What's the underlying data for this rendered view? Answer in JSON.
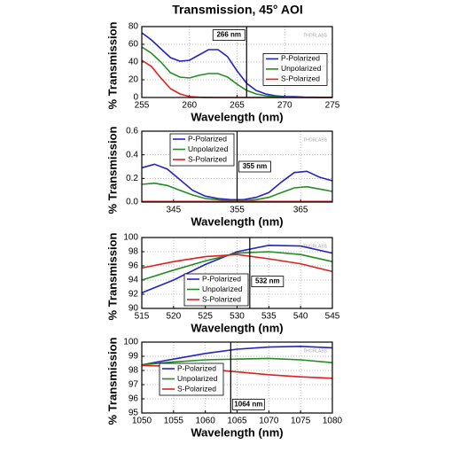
{
  "title": "Transmission, 45° AOI",
  "chart_data": [
    {
      "type": "line",
      "xlabel": "Wavelength (nm)",
      "ylabel": "% Transmission",
      "watermark": "THORLABS",
      "x": [
        255,
        256,
        257,
        258,
        259,
        260,
        261,
        262,
        263,
        264,
        265,
        266,
        267,
        268,
        269,
        270,
        271,
        272,
        273,
        274,
        275
      ],
      "series": [
        {
          "name": "P-Polarized",
          "color": "#2323c8",
          "values": [
            73,
            65,
            55,
            45,
            41,
            42,
            48,
            54,
            54,
            46,
            30,
            16,
            8,
            4,
            2,
            1,
            1,
            0.5,
            0.3,
            0.2,
            0.2
          ]
        },
        {
          "name": "Unpolarized",
          "color": "#238c23",
          "values": [
            57,
            50,
            40,
            28,
            23,
            22,
            25,
            27,
            27,
            23,
            15,
            8,
            4,
            2,
            1,
            0.5,
            0.3,
            0.2,
            0.1,
            0.1,
            0.1
          ]
        },
        {
          "name": "S-Polarized",
          "color": "#e02020",
          "values": [
            42,
            35,
            22,
            10,
            4,
            1,
            0.3,
            0.1,
            0,
            0,
            0,
            0,
            0,
            0,
            0,
            0,
            0,
            0,
            0,
            0,
            0
          ]
        }
      ],
      "xlim": [
        255,
        275
      ],
      "xticks": [
        255,
        260,
        265,
        270,
        275
      ],
      "ylim": [
        0,
        80
      ],
      "yticks": [
        0,
        20,
        40,
        60,
        80
      ],
      "grid": true,
      "legend": "right",
      "marker": {
        "value": 266,
        "label": "266 nm"
      }
    },
    {
      "type": "line",
      "xlabel": "Wavelength (nm)",
      "ylabel": "% Transmission",
      "watermark": "THORLABS",
      "x": [
        340,
        342,
        344,
        346,
        348,
        350,
        352,
        354,
        356,
        358,
        360,
        362,
        364,
        366,
        368,
        370
      ],
      "series": [
        {
          "name": "P-Polarized",
          "color": "#2323c8",
          "values": [
            0.29,
            0.32,
            0.28,
            0.19,
            0.1,
            0.05,
            0.03,
            0.02,
            0.02,
            0.04,
            0.08,
            0.17,
            0.25,
            0.26,
            0.21,
            0.18
          ]
        },
        {
          "name": "Unpolarized",
          "color": "#238c23",
          "values": [
            0.15,
            0.16,
            0.14,
            0.1,
            0.06,
            0.03,
            0.02,
            0.01,
            0.01,
            0.02,
            0.04,
            0.08,
            0.12,
            0.13,
            0.11,
            0.09
          ]
        },
        {
          "name": "S-Polarized",
          "color": "#e02020",
          "values": [
            0.005,
            0.005,
            0.005,
            0.005,
            0.005,
            0.005,
            0.005,
            0.005,
            0.005,
            0.005,
            0.005,
            0.005,
            0.005,
            0.005,
            0.005,
            0.005
          ]
        }
      ],
      "xlim": [
        340,
        370
      ],
      "xticks": [
        345,
        355,
        365
      ],
      "ylim": [
        0,
        0.6
      ],
      "yticks": [
        {
          "value": 0,
          "label": "0.0"
        },
        0.2,
        0.4,
        0.6
      ],
      "grid": true,
      "legend": "upper left",
      "marker": {
        "value": 355,
        "label": "355 nm"
      }
    },
    {
      "type": "line",
      "xlabel": "Wavelength (nm)",
      "ylabel": "% Transmission",
      "watermark": "THORLABS",
      "x": [
        515,
        520,
        525,
        530,
        535,
        540,
        545
      ],
      "series": [
        {
          "name": "P-Polarized",
          "color": "#2323c8",
          "values": [
            92.2,
            94.0,
            96.2,
            98.0,
            98.9,
            98.8,
            97.8
          ]
        },
        {
          "name": "Unpolarized",
          "color": "#238c23",
          "values": [
            94.0,
            95.4,
            96.7,
            97.8,
            98.0,
            97.6,
            96.6
          ]
        },
        {
          "name": "S-Polarized",
          "color": "#e02020",
          "values": [
            95.7,
            96.6,
            97.3,
            97.6,
            97.0,
            96.3,
            95.2
          ]
        }
      ],
      "xlim": [
        515,
        545
      ],
      "xticks": [
        515,
        520,
        525,
        530,
        535,
        540,
        545
      ],
      "ylim": [
        90,
        100
      ],
      "yticks": [
        90,
        92,
        94,
        96,
        98,
        100
      ],
      "grid": true,
      "legend": "lower center",
      "marker": {
        "value": 532,
        "label": "532 nm"
      }
    },
    {
      "type": "line",
      "xlabel": "Wavelength (nm)",
      "ylabel": "% Transmission",
      "watermark": "THORLABS",
      "x": [
        1050,
        1055,
        1060,
        1065,
        1070,
        1075,
        1080
      ],
      "series": [
        {
          "name": "P-Polarized",
          "color": "#2323c8",
          "values": [
            98.4,
            98.8,
            99.2,
            99.5,
            99.65,
            99.7,
            99.6
          ]
        },
        {
          "name": "Unpolarized",
          "color": "#238c23",
          "values": [
            98.4,
            98.6,
            98.75,
            98.8,
            98.85,
            98.75,
            98.55
          ]
        },
        {
          "name": "S-Polarized",
          "color": "#e02020",
          "values": [
            98.35,
            98.3,
            98.1,
            97.9,
            97.7,
            97.55,
            97.45
          ]
        }
      ],
      "xlim": [
        1050,
        1080
      ],
      "xticks": [
        1050,
        1055,
        1060,
        1065,
        1070,
        1075,
        1080
      ],
      "ylim": [
        95,
        100
      ],
      "yticks": [
        95,
        96,
        97,
        98,
        99,
        100
      ],
      "grid": true,
      "legend": "left",
      "marker": {
        "value": 1064,
        "label": "1064 nm"
      }
    }
  ]
}
